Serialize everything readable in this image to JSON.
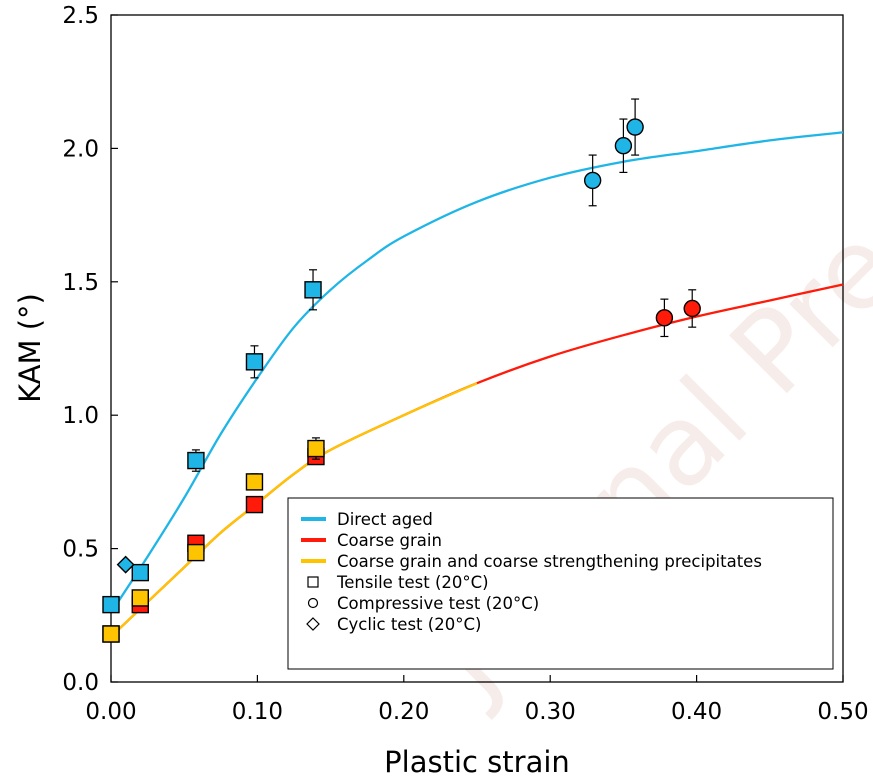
{
  "chart_data": {
    "type": "scatter",
    "xlabel": "Plastic strain",
    "ylabel": "KAM (°)",
    "xlim": [
      0,
      0.5
    ],
    "ylim": [
      0,
      2.5
    ],
    "xticks": [
      0,
      0.1,
      0.2,
      0.3,
      0.4,
      0.5
    ],
    "xtick_labels": [
      "0.00",
      "0.10",
      "0.20",
      "0.30",
      "0.40",
      "0.50"
    ],
    "yticks": [
      0,
      0.5,
      1.0,
      1.5,
      2.0,
      2.5
    ],
    "ytick_labels": [
      "0.0",
      "0.5",
      "1.0",
      "1.5",
      "2.0",
      "2.5"
    ],
    "grid": false,
    "legend_position": "bottom-right",
    "legend": [
      {
        "label": "Direct aged",
        "kind": "line",
        "color": "#1fb5e6"
      },
      {
        "label": "Coarse grain",
        "kind": "line",
        "color": "#ff1a0a"
      },
      {
        "label": "Coarse grain and coarse strengthening precipitates",
        "kind": "line",
        "color": "#ffc400"
      },
      {
        "label": "Tensile test (20°C)",
        "kind": "marker",
        "marker": "square"
      },
      {
        "label": "Compressive test (20°C)",
        "kind": "marker",
        "marker": "circle"
      },
      {
        "label": "Cyclic test (20°C)",
        "kind": "marker",
        "marker": "diamond"
      }
    ],
    "series": [
      {
        "name": "Direct aged",
        "color": "#1fb5e6",
        "points": [
          {
            "x": 0.0,
            "y": 0.29,
            "marker": "square"
          },
          {
            "x": 0.02,
            "y": 0.41,
            "marker": "square"
          },
          {
            "x": 0.058,
            "y": 0.83,
            "marker": "square",
            "err": 0.04
          },
          {
            "x": 0.098,
            "y": 1.2,
            "marker": "square",
            "err": 0.06
          },
          {
            "x": 0.138,
            "y": 1.47,
            "marker": "square",
            "err": 0.075
          },
          {
            "x": 0.01,
            "y": 0.44,
            "marker": "diamond"
          },
          {
            "x": 0.329,
            "y": 1.88,
            "marker": "circle",
            "err": 0.095
          },
          {
            "x": 0.35,
            "y": 2.01,
            "marker": "circle",
            "err": 0.1
          },
          {
            "x": 0.358,
            "y": 2.08,
            "marker": "circle",
            "err": 0.105
          }
        ],
        "fit": [
          [
            0.0,
            0.26
          ],
          [
            0.025,
            0.47
          ],
          [
            0.05,
            0.69
          ],
          [
            0.075,
            0.93
          ],
          [
            0.1,
            1.14
          ],
          [
            0.125,
            1.33
          ],
          [
            0.15,
            1.47
          ],
          [
            0.175,
            1.58
          ],
          [
            0.2,
            1.67
          ],
          [
            0.25,
            1.8
          ],
          [
            0.3,
            1.89
          ],
          [
            0.35,
            1.95
          ],
          [
            0.4,
            1.99
          ],
          [
            0.45,
            2.03
          ],
          [
            0.5,
            2.06
          ]
        ]
      },
      {
        "name": "Coarse grain",
        "color": "#ff1a0a",
        "points": [
          {
            "x": 0.0,
            "y": 0.18,
            "marker": "square"
          },
          {
            "x": 0.02,
            "y": 0.29,
            "marker": "square"
          },
          {
            "x": 0.058,
            "y": 0.52,
            "marker": "square"
          },
          {
            "x": 0.098,
            "y": 0.665,
            "marker": "square"
          },
          {
            "x": 0.14,
            "y": 0.845,
            "marker": "square"
          },
          {
            "x": 0.378,
            "y": 1.365,
            "marker": "circle",
            "err": 0.07
          },
          {
            "x": 0.397,
            "y": 1.4,
            "marker": "circle",
            "err": 0.07
          }
        ],
        "fit": [
          [
            0.0,
            0.17
          ],
          [
            0.025,
            0.3
          ],
          [
            0.05,
            0.43
          ],
          [
            0.075,
            0.56
          ],
          [
            0.1,
            0.67
          ],
          [
            0.125,
            0.78
          ],
          [
            0.15,
            0.87
          ],
          [
            0.2,
            1.0
          ],
          [
            0.25,
            1.12
          ],
          [
            0.3,
            1.22
          ],
          [
            0.35,
            1.3
          ],
          [
            0.4,
            1.37
          ],
          [
            0.45,
            1.43
          ],
          [
            0.5,
            1.49
          ]
        ]
      },
      {
        "name": "Coarse grain and coarse strengthening precipitates",
        "color": "#ffc400",
        "points": [
          {
            "x": 0.0,
            "y": 0.18,
            "marker": "square"
          },
          {
            "x": 0.02,
            "y": 0.315,
            "marker": "square"
          },
          {
            "x": 0.058,
            "y": 0.485,
            "marker": "square"
          },
          {
            "x": 0.098,
            "y": 0.75,
            "marker": "square",
            "err": 0.03
          },
          {
            "x": 0.14,
            "y": 0.875,
            "marker": "square",
            "err": 0.04
          }
        ],
        "fit": [
          [
            0.0,
            0.17
          ],
          [
            0.025,
            0.3
          ],
          [
            0.05,
            0.43
          ],
          [
            0.075,
            0.56
          ],
          [
            0.1,
            0.67
          ],
          [
            0.125,
            0.78
          ],
          [
            0.15,
            0.87
          ],
          [
            0.2,
            1.0
          ],
          [
            0.25,
            1.12
          ]
        ]
      }
    ],
    "watermark": "Journal Pre-proof"
  }
}
